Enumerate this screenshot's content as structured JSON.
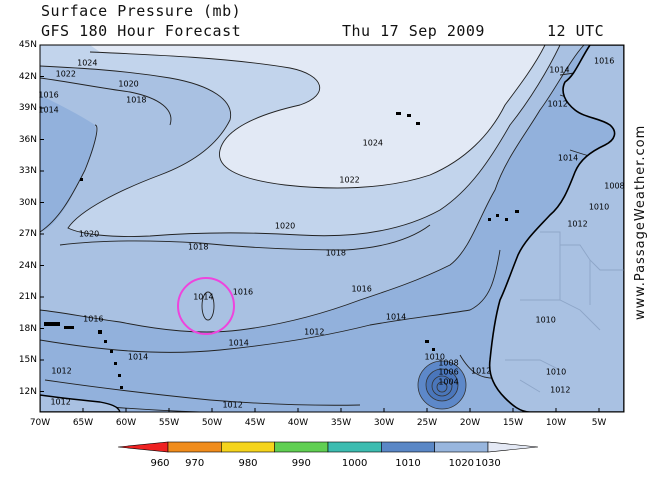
{
  "header": {
    "title": "Surface Pressure (mb)",
    "subtitle": "GFS 180 Hour Forecast",
    "date": "Thu 17 Sep 2009",
    "time": "12 UTC"
  },
  "watermark": "www.PassageWeather.com",
  "map": {
    "lat_labels": [
      "45N",
      "42N",
      "39N",
      "36N",
      "33N",
      "30N",
      "27N",
      "24N",
      "21N",
      "18N",
      "15N",
      "12N"
    ],
    "lon_labels": [
      "70W",
      "65W",
      "60W",
      "55W",
      "50W",
      "45W",
      "40W",
      "35W",
      "30W",
      "25W",
      "20W",
      "15W",
      "10W",
      "5W"
    ],
    "lat_range": [
      10,
      45
    ],
    "lon_range": [
      -70,
      -2
    ],
    "contour_labels": [
      {
        "text": "1024",
        "lon": -64.5,
        "lat": 43.3
      },
      {
        "text": "1022",
        "lon": -67.0,
        "lat": 42.2
      },
      {
        "text": "1020",
        "lon": -59.7,
        "lat": 41.3
      },
      {
        "text": "1018",
        "lon": -58.8,
        "lat": 39.8
      },
      {
        "text": "1016",
        "lon": -69.0,
        "lat": 40.2
      },
      {
        "text": "1014",
        "lon": -69.0,
        "lat": 38.8
      },
      {
        "text": "1024",
        "lon": -31.3,
        "lat": 35.7
      },
      {
        "text": "1022",
        "lon": -34.0,
        "lat": 32.1
      },
      {
        "text": "1020",
        "lon": -41.5,
        "lat": 27.8
      },
      {
        "text": "1020",
        "lon": -64.3,
        "lat": 27.0
      },
      {
        "text": "1018",
        "lon": -51.6,
        "lat": 25.8
      },
      {
        "text": "1018",
        "lon": -35.6,
        "lat": 25.2
      },
      {
        "text": "1016",
        "lon": -46.4,
        "lat": 21.5
      },
      {
        "text": "1016",
        "lon": -32.6,
        "lat": 21.8
      },
      {
        "text": "1016",
        "lon": -63.8,
        "lat": 18.9
      },
      {
        "text": "1014",
        "lon": -51.0,
        "lat": 21.0
      },
      {
        "text": "1014",
        "lon": -28.6,
        "lat": 19.1
      },
      {
        "text": "1012",
        "lon": -38.1,
        "lat": 17.7
      },
      {
        "text": "1014",
        "lon": -46.9,
        "lat": 16.6
      },
      {
        "text": "1014",
        "lon": -58.6,
        "lat": 15.3
      },
      {
        "text": "1012",
        "lon": -67.5,
        "lat": 14.0
      },
      {
        "text": "1012",
        "lon": -67.6,
        "lat": 11.0
      },
      {
        "text": "1012",
        "lon": -47.6,
        "lat": 10.7
      },
      {
        "text": "1010",
        "lon": -24.1,
        "lat": 15.3
      },
      {
        "text": "1008",
        "lon": -22.5,
        "lat": 14.7
      },
      {
        "text": "1006",
        "lon": -22.5,
        "lat": 13.9
      },
      {
        "text": "1004",
        "lon": -22.5,
        "lat": 12.9
      },
      {
        "text": "1012",
        "lon": -18.7,
        "lat": 14.0
      },
      {
        "text": "1012",
        "lon": -9.5,
        "lat": 12.1
      },
      {
        "text": "1010",
        "lon": -11.2,
        "lat": 18.8
      },
      {
        "text": "1010",
        "lon": -10.0,
        "lat": 13.9
      },
      {
        "text": "1016",
        "lon": -4.4,
        "lat": 43.5
      },
      {
        "text": "1014",
        "lon": -9.6,
        "lat": 42.6
      },
      {
        "text": "1012",
        "lon": -9.8,
        "lat": 39.4
      },
      {
        "text": "1014",
        "lon": -8.6,
        "lat": 34.2
      },
      {
        "text": "1010",
        "lon": -5.0,
        "lat": 29.6
      },
      {
        "text": "1012",
        "lon": -7.5,
        "lat": 28.0
      },
      {
        "text": "1008",
        "lon": -3.2,
        "lat": 31.6
      }
    ]
  },
  "legend": {
    "labels": [
      "960",
      "970",
      "980",
      "990",
      "1000",
      "1010",
      "1020",
      "1030"
    ],
    "colors": [
      "#ee2222",
      "#f08c1c",
      "#f5d41c",
      "#60cf52",
      "#3cbcb0",
      "#5a87c6",
      "#98b6de",
      "#e4e9f5"
    ]
  },
  "colors": {
    "fill_1010": "#5d88c9",
    "fill_1012": "#92b1dc",
    "fill_1016": "#a9c1e2",
    "fill_1020": "#c2d4ec",
    "fill_1024": "#e2e9f5",
    "highlight_circle": "#ee44dd"
  }
}
